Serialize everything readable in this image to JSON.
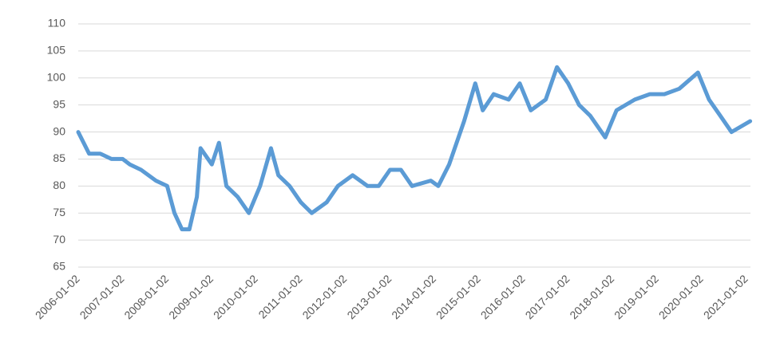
{
  "chart_data": {
    "type": "line",
    "x": [
      "2006-01-02",
      "2006-04-01",
      "2006-07-01",
      "2006-10-01",
      "2007-01-01",
      "2007-03-01",
      "2007-06-01",
      "2007-10-01",
      "2008-01-01",
      "2008-03-01",
      "2008-05-01",
      "2008-07-01",
      "2008-09-01",
      "2008-10-01",
      "2009-01-01",
      "2009-03-01",
      "2009-05-01",
      "2009-08-01",
      "2009-11-01",
      "2010-02-01",
      "2010-05-01",
      "2010-07-01",
      "2010-10-01",
      "2011-01-01",
      "2011-04-01",
      "2011-08-01",
      "2011-11-01",
      "2012-03-01",
      "2012-07-01",
      "2012-10-01",
      "2013-01-01",
      "2013-04-01",
      "2013-07-01",
      "2013-12-01",
      "2014-02-01",
      "2014-05-01",
      "2014-09-01",
      "2014-12-01",
      "2015-02-01",
      "2015-05-01",
      "2015-09-01",
      "2015-12-01",
      "2016-03-01",
      "2016-07-01",
      "2016-10-01",
      "2017-01-01",
      "2017-04-01",
      "2017-07-01",
      "2017-11-01",
      "2018-02-01",
      "2018-07-01",
      "2018-11-01",
      "2019-03-01",
      "2019-07-01",
      "2019-12-01",
      "2020-03-01",
      "2020-06-01",
      "2020-09-01",
      "2021-02-01"
    ],
    "values": [
      90,
      86,
      86,
      85,
      85,
      84,
      83,
      81,
      80,
      75,
      72,
      72,
      78,
      87,
      84,
      88,
      80,
      78,
      75,
      80,
      87,
      82,
      80,
      77,
      75,
      77,
      80,
      82,
      80,
      80,
      83,
      83,
      80,
      81,
      80,
      84,
      92,
      99,
      94,
      97,
      96,
      99,
      94,
      96,
      102,
      99,
      95,
      93,
      89,
      94,
      96,
      97,
      97,
      98,
      101,
      96,
      93,
      90,
      92
    ],
    "color": "#5b9bd5",
    "xlim": [
      "2006-01-02",
      "2021-01-02"
    ],
    "xticks": [
      "2006-01-02",
      "2007-01-02",
      "2008-01-02",
      "2009-01-02",
      "2010-01-02",
      "2011-01-02",
      "2012-01-02",
      "2013-01-02",
      "2014-01-02",
      "2015-01-02",
      "2016-01-02",
      "2017-01-02",
      "2018-01-02",
      "2019-01-02",
      "2020-01-02",
      "2021-01-02"
    ],
    "ylim": [
      65,
      110
    ],
    "yticks": [
      65,
      70,
      75,
      80,
      85,
      90,
      95,
      100,
      105,
      110
    ],
    "grid": true
  }
}
